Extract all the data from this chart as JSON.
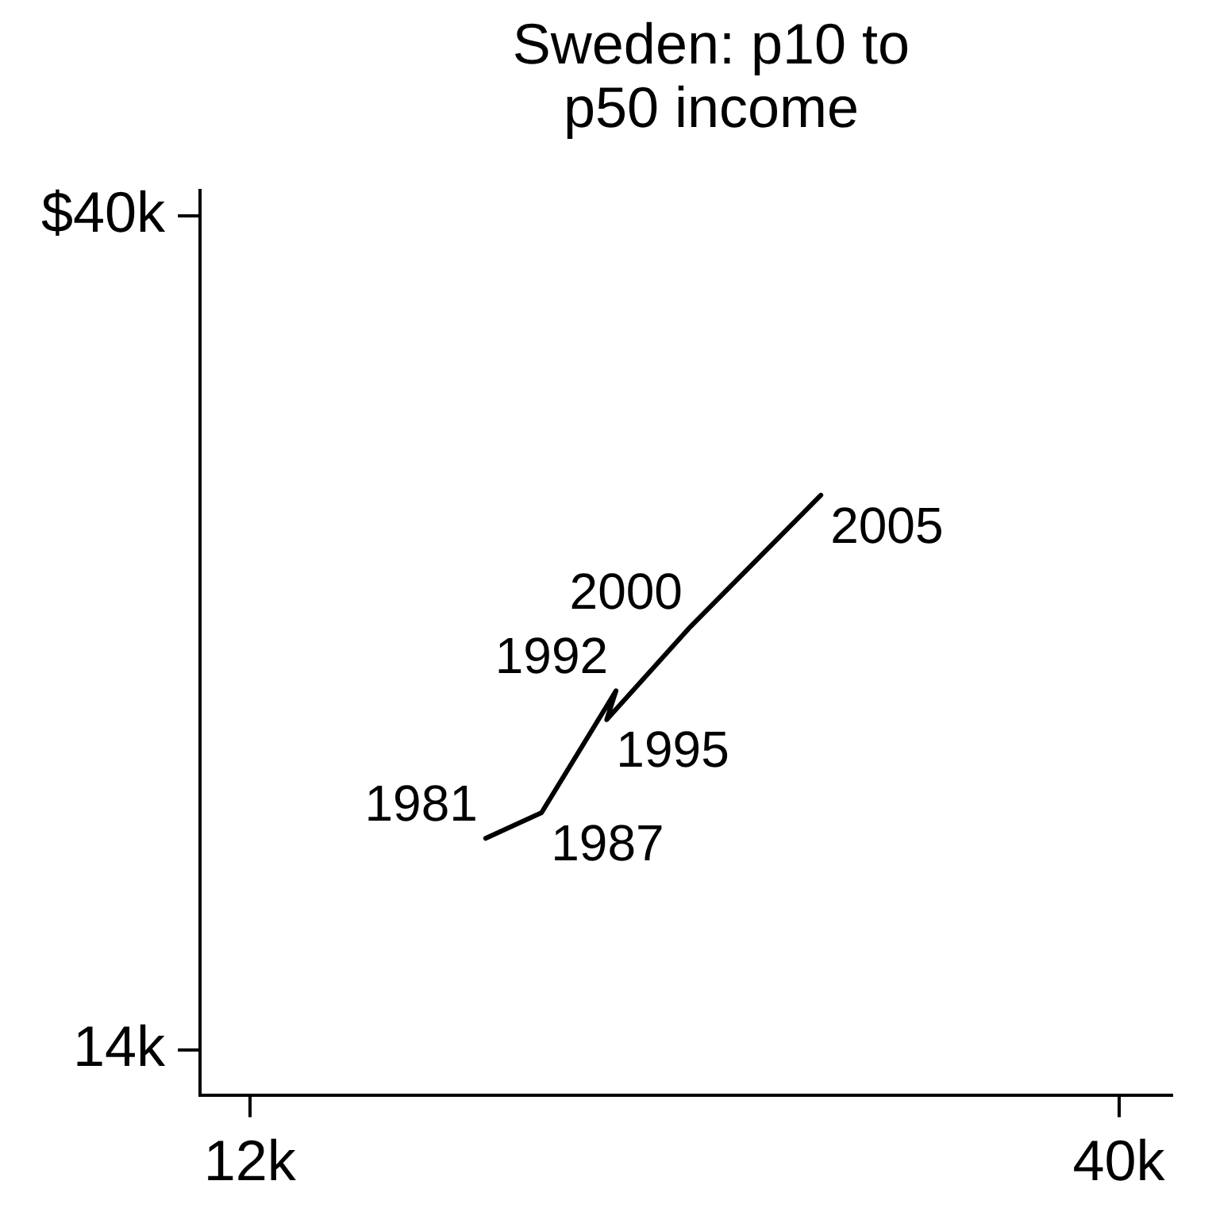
{
  "chart_data": {
    "type": "line",
    "title": "Sweden: p10 to p50 income",
    "x": [
      19.6,
      21.4,
      23.8,
      23.5,
      26.2,
      30.4
    ],
    "series": [
      {
        "color": "#000000",
        "values": [
          20.6,
          21.4,
          25.2,
          24.3,
          27.2,
          31.3
        ]
      }
    ],
    "annotations": [
      {
        "text": "1981",
        "x": 19.6,
        "y": 20.6
      },
      {
        "text": "1987",
        "x": 21.4,
        "y": 21.4
      },
      {
        "text": "1992",
        "x": 23.8,
        "y": 25.2
      },
      {
        "text": "1995",
        "x": 23.5,
        "y": 24.3
      },
      {
        "text": "2000",
        "x": 26.2,
        "y": 27.2
      },
      {
        "text": "2005",
        "x": 30.4,
        "y": 31.3
      }
    ],
    "marker": "none",
    "xlim": [
      10.4,
      41.7
    ],
    "ylim": [
      12.6,
      40.8
    ],
    "xticks": [
      {
        "value": 12,
        "label": "12k"
      },
      {
        "value": 40,
        "label": "40k"
      }
    ],
    "yticks": [
      {
        "value": 14,
        "label": "14k"
      },
      {
        "value": 40,
        "label": "$40k"
      }
    ]
  }
}
